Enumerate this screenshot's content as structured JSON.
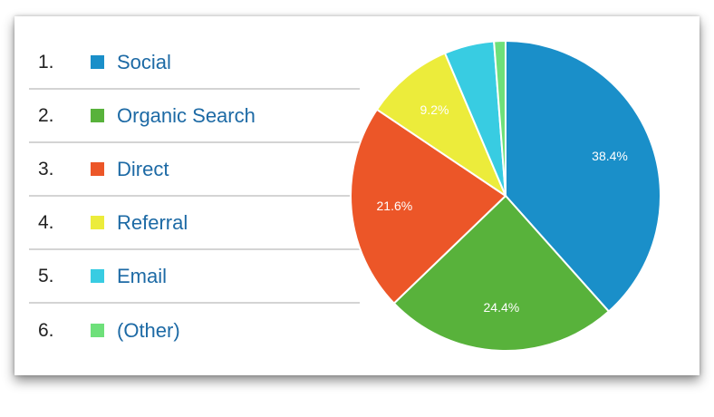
{
  "chart_data": {
    "type": "pie",
    "title": "",
    "legend_placement": "left",
    "start_angle": "12 o'clock, clockwise",
    "slices": [
      {
        "rank": "1.",
        "name": "Social",
        "value": 38.4,
        "label": "38.4%",
        "color": "#1a8fc9"
      },
      {
        "rank": "2.",
        "name": "Organic Search",
        "value": 24.4,
        "label": "24.4%",
        "color": "#58b23b"
      },
      {
        "rank": "3.",
        "name": "Direct",
        "value": 21.6,
        "label": "21.6%",
        "color": "#ec5628"
      },
      {
        "rank": "4.",
        "name": "Referral",
        "value": 9.2,
        "label": "9.2%",
        "color": "#ecec3b"
      },
      {
        "rank": "5.",
        "name": "Email",
        "value": 5.2,
        "label": "",
        "color": "#38cce2"
      },
      {
        "rank": "6.",
        "name": "(Other)",
        "value": 1.2,
        "label": "",
        "color": "#6ee07a"
      }
    ]
  }
}
